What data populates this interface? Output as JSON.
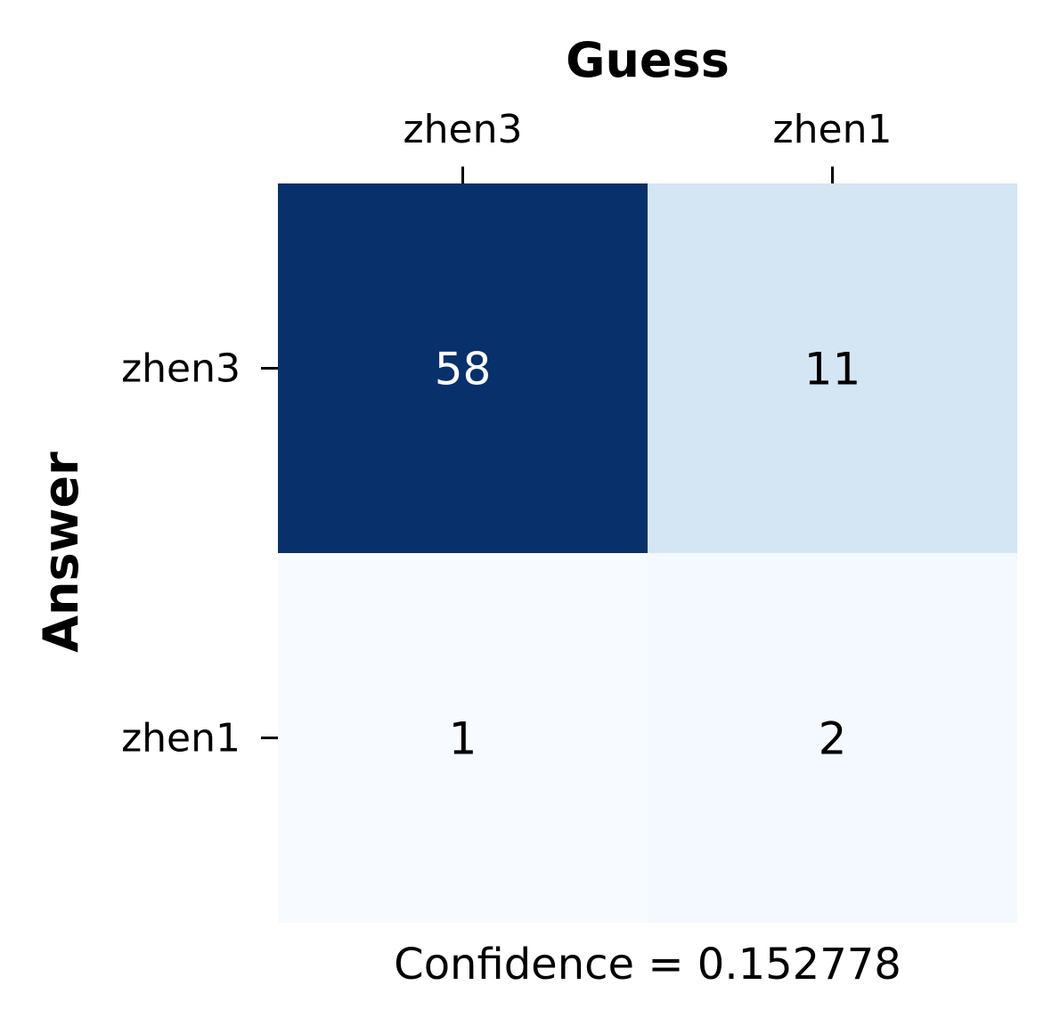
{
  "chart_data": {
    "type": "heatmap",
    "x_title": "Guess",
    "y_title": "Answer",
    "x_categories": [
      "zhen3",
      "zhen1"
    ],
    "y_categories": [
      "zhen3",
      "zhen1"
    ],
    "values": [
      [
        58,
        11
      ],
      [
        1,
        2
      ]
    ],
    "footer": "Confidence = 0.152778",
    "colormap": "Blues",
    "colorbar": false,
    "x_axis_position": "top"
  }
}
